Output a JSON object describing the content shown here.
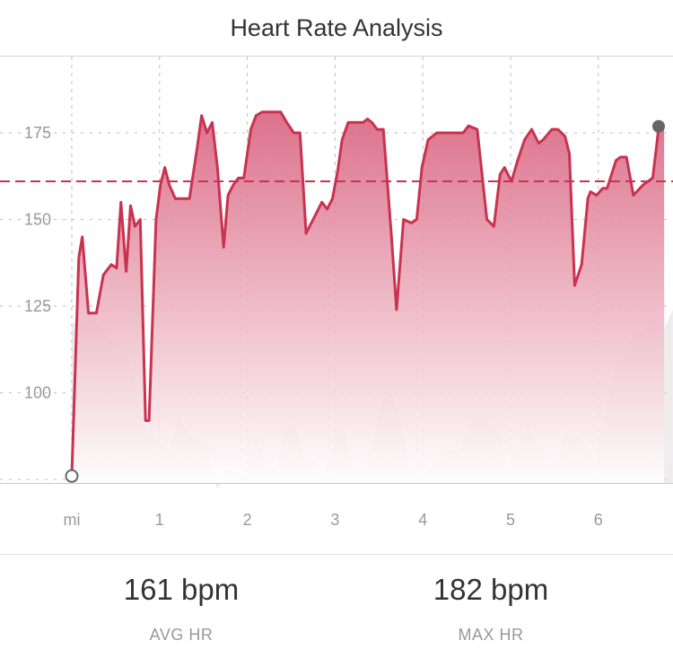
{
  "header": {
    "title": "Heart Rate Analysis"
  },
  "stats": {
    "avg": {
      "value": "161 bpm",
      "label": "AVG HR"
    },
    "max": {
      "value": "182 bpm",
      "label": "MAX HR"
    }
  },
  "colors": {
    "line": "#c8334f",
    "fill_top": "#d9627f",
    "fill_bottom": "#ffffff",
    "avg_line": "#c8334f",
    "grid": "#bdbdbd",
    "terrain": "#e2dde0",
    "tick_text": "#999999"
  },
  "chart_data": {
    "type": "area",
    "title": "Heart Rate Analysis",
    "xlabel": "mi",
    "ylabel": "",
    "xlim": [
      0,
      6.85
    ],
    "ylim": [
      74,
      197
    ],
    "x_ticks": [
      {
        "value": 0,
        "label": "mi"
      },
      {
        "value": 1,
        "label": "1"
      },
      {
        "value": 2,
        "label": "2"
      },
      {
        "value": 3,
        "label": "3"
      },
      {
        "value": 4,
        "label": "4"
      },
      {
        "value": 5,
        "label": "5"
      },
      {
        "value": 6,
        "label": "6"
      }
    ],
    "y_ticks": [
      {
        "value": 175,
        "label": "175"
      },
      {
        "value": 150,
        "label": "150"
      },
      {
        "value": 125,
        "label": "125"
      },
      {
        "value": 100,
        "label": "100"
      },
      {
        "value": 75,
        "label": ""
      }
    ],
    "grid": true,
    "average_line": 161,
    "series": [
      {
        "x": [
          0,
          0.08,
          0.12,
          0.19,
          0.28,
          0.36,
          0.45,
          0.51,
          0.56,
          0.62,
          0.67,
          0.72,
          0.78,
          0.84,
          0.88,
          0.96,
          1.01,
          1.06,
          1.11,
          1.18,
          1.25,
          1.34,
          1.43,
          1.48,
          1.54,
          1.6,
          1.66,
          1.73,
          1.78,
          1.84,
          1.9,
          1.96,
          2.04,
          2.1,
          2.17,
          2.26,
          2.38,
          2.45,
          2.53,
          2.6,
          2.67,
          2.71,
          2.79,
          2.85,
          2.91,
          2.97,
          3.03,
          3.08,
          3.15,
          3.2,
          3.32,
          3.37,
          3.42,
          3.48,
          3.55,
          3.64,
          3.7,
          3.78,
          3.87,
          3.93,
          3.99,
          4.06,
          4.16,
          4.46,
          4.52,
          4.62,
          4.73,
          4.81,
          4.88,
          4.93,
          5.01,
          5.08,
          5.16,
          5.24,
          5.32,
          5.37,
          5.47,
          5.54,
          5.62,
          5.67,
          5.73,
          5.81,
          5.88,
          5.91,
          5.98,
          6.05,
          6.1,
          6.2,
          6.25,
          6.32,
          6.4,
          6.51,
          6.62,
          6.69,
          6.75
        ],
        "values": [
          76,
          139,
          145,
          123,
          123,
          134,
          137,
          136,
          155,
          135,
          154,
          148,
          150,
          92,
          92,
          150,
          160,
          165,
          160,
          156,
          156,
          156,
          171,
          180,
          175,
          178,
          165,
          142,
          157,
          160,
          162,
          162,
          176,
          180,
          181,
          181,
          181,
          178,
          175,
          175,
          146,
          148,
          152,
          155,
          153,
          156,
          164,
          173,
          178,
          178,
          178,
          179,
          178,
          176,
          176,
          146,
          124,
          150,
          149,
          150,
          165,
          173,
          175,
          175,
          177,
          176,
          150,
          148,
          163,
          165,
          161,
          167,
          173,
          176,
          172,
          173,
          176,
          176,
          174,
          169,
          131,
          137,
          156,
          158,
          157,
          159,
          159,
          167,
          168,
          168,
          157,
          160,
          162,
          177,
          177
        ]
      }
    ],
    "elevation_profile": {
      "values": [
        120,
        121,
        121,
        119,
        115,
        113,
        108,
        96,
        87,
        86,
        83,
        93,
        88,
        87,
        85,
        72,
        78,
        77,
        76,
        87,
        80,
        78,
        89,
        92,
        79,
        81,
        76,
        84,
        90,
        78,
        79,
        85,
        97,
        100,
        90,
        77,
        81,
        78,
        82,
        84,
        83,
        92,
        95,
        92,
        89,
        78,
        83,
        91,
        84,
        79,
        80,
        89,
        88,
        85,
        80,
        95,
        106,
        112,
        117,
        118,
        121,
        118,
        124
      ]
    }
  }
}
